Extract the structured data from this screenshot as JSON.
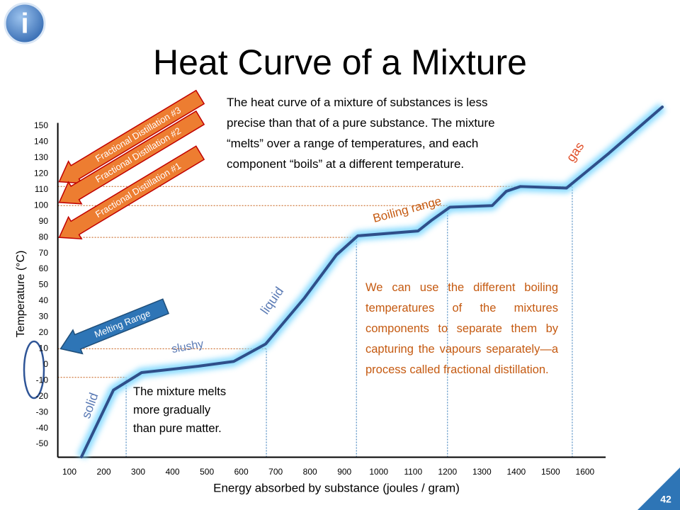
{
  "chart_data": {
    "type": "line",
    "title": "Heat Curve of a Mixture",
    "xlabel": "Energy absorbed by substance (joules / gram)",
    "ylabel": "Temperature (°C)",
    "xlim": [
      60,
      1660
    ],
    "ylim": [
      -60,
      152
    ],
    "xticks": [
      100,
      200,
      300,
      400,
      500,
      600,
      700,
      800,
      900,
      1000,
      1100,
      1200,
      1300,
      1400,
      1500,
      1600
    ],
    "yticks": [
      -50,
      -40,
      -30,
      -20,
      -10,
      0,
      10,
      20,
      30,
      40,
      50,
      60,
      70,
      80,
      90,
      100,
      110,
      120,
      130,
      140,
      150
    ],
    "series": [
      {
        "color": "#2f4f8a",
        "x": [
          135,
          228,
          310,
          475,
          578,
          671,
          784,
          877,
          939,
          1114,
          1155,
          1207,
          1330,
          1371,
          1412,
          1546,
          1608,
          1670,
          1825
        ],
        "values": [
          -58,
          -16,
          -5,
          -1,
          2,
          13,
          42,
          69,
          81,
          84,
          91,
          99,
          100,
          109,
          112,
          111,
          122,
          133,
          162
        ]
      }
    ],
    "guides": {
      "x": [
        265,
        1200,
        673,
        935,
        1563
      ],
      "values": [
        -8,
        100,
        10,
        80,
        112
      ]
    },
    "arrows": [
      {
        "text": "Fractional Distillation #3",
        "value": 115
      },
      {
        "text": "Fractional Distillation #2",
        "value": 102
      },
      {
        "text": "Fractional Distillation #1",
        "value": 80
      },
      {
        "text": "Melting  Range",
        "value": 10
      }
    ],
    "phase_labels": [
      "solid",
      "slushy",
      "liquid",
      "Boiling range",
      "gas"
    ],
    "note_top": [
      "The heat curve of a mixture of substances is less",
      "precise than that of a pure substance.  The mixture",
      "“melts” over a range of temperatures, and each",
      "component “boils” at a different temperature."
    ],
    "note_left": [
      "The mixture melts",
      "more gradually",
      "than pure matter."
    ],
    "note_right": "We can use the different boiling temperatures of the mixtures components to separate them by capturing the vapours separately—a process called fractional distillation.",
    "info_icon": "i",
    "page_number": "42"
  }
}
